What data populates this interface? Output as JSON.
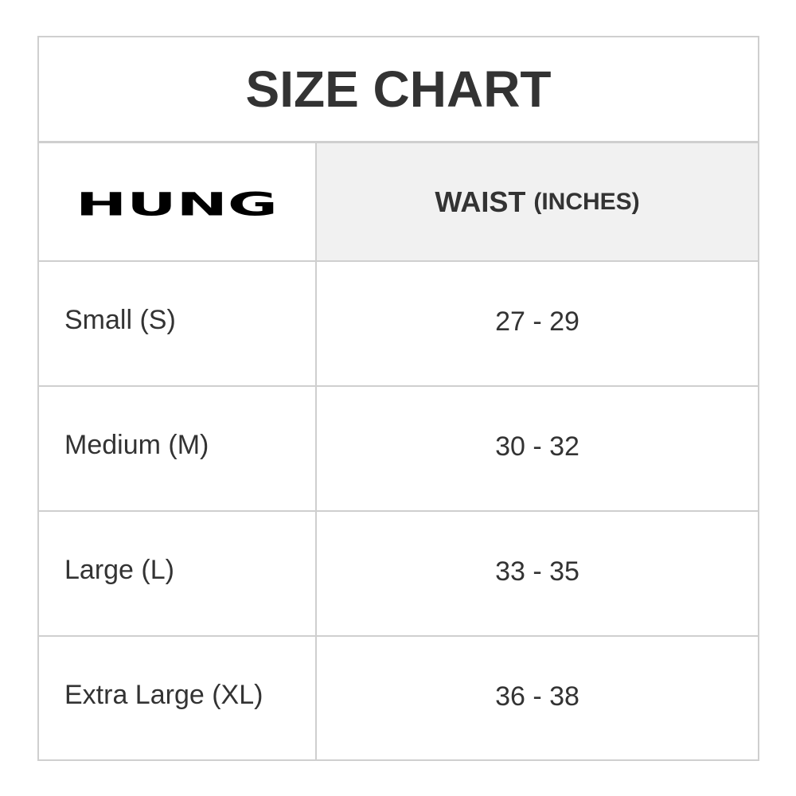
{
  "title": "SIZE CHART",
  "brand_logo": "HUNG",
  "header": {
    "column_label": "WAIST",
    "column_unit": "(INCHES)"
  },
  "rows": [
    {
      "size": "Small (S)",
      "waist": "27 - 29"
    },
    {
      "size": "Medium (M)",
      "waist": "30 - 32"
    },
    {
      "size": "Large (L)",
      "waist": "33 - 35"
    },
    {
      "size": "Extra Large (XL)",
      "waist": "36 - 38"
    }
  ],
  "colors": {
    "border": "#cfcfcf",
    "header_bg": "#f1f1f1",
    "text": "#333333"
  }
}
